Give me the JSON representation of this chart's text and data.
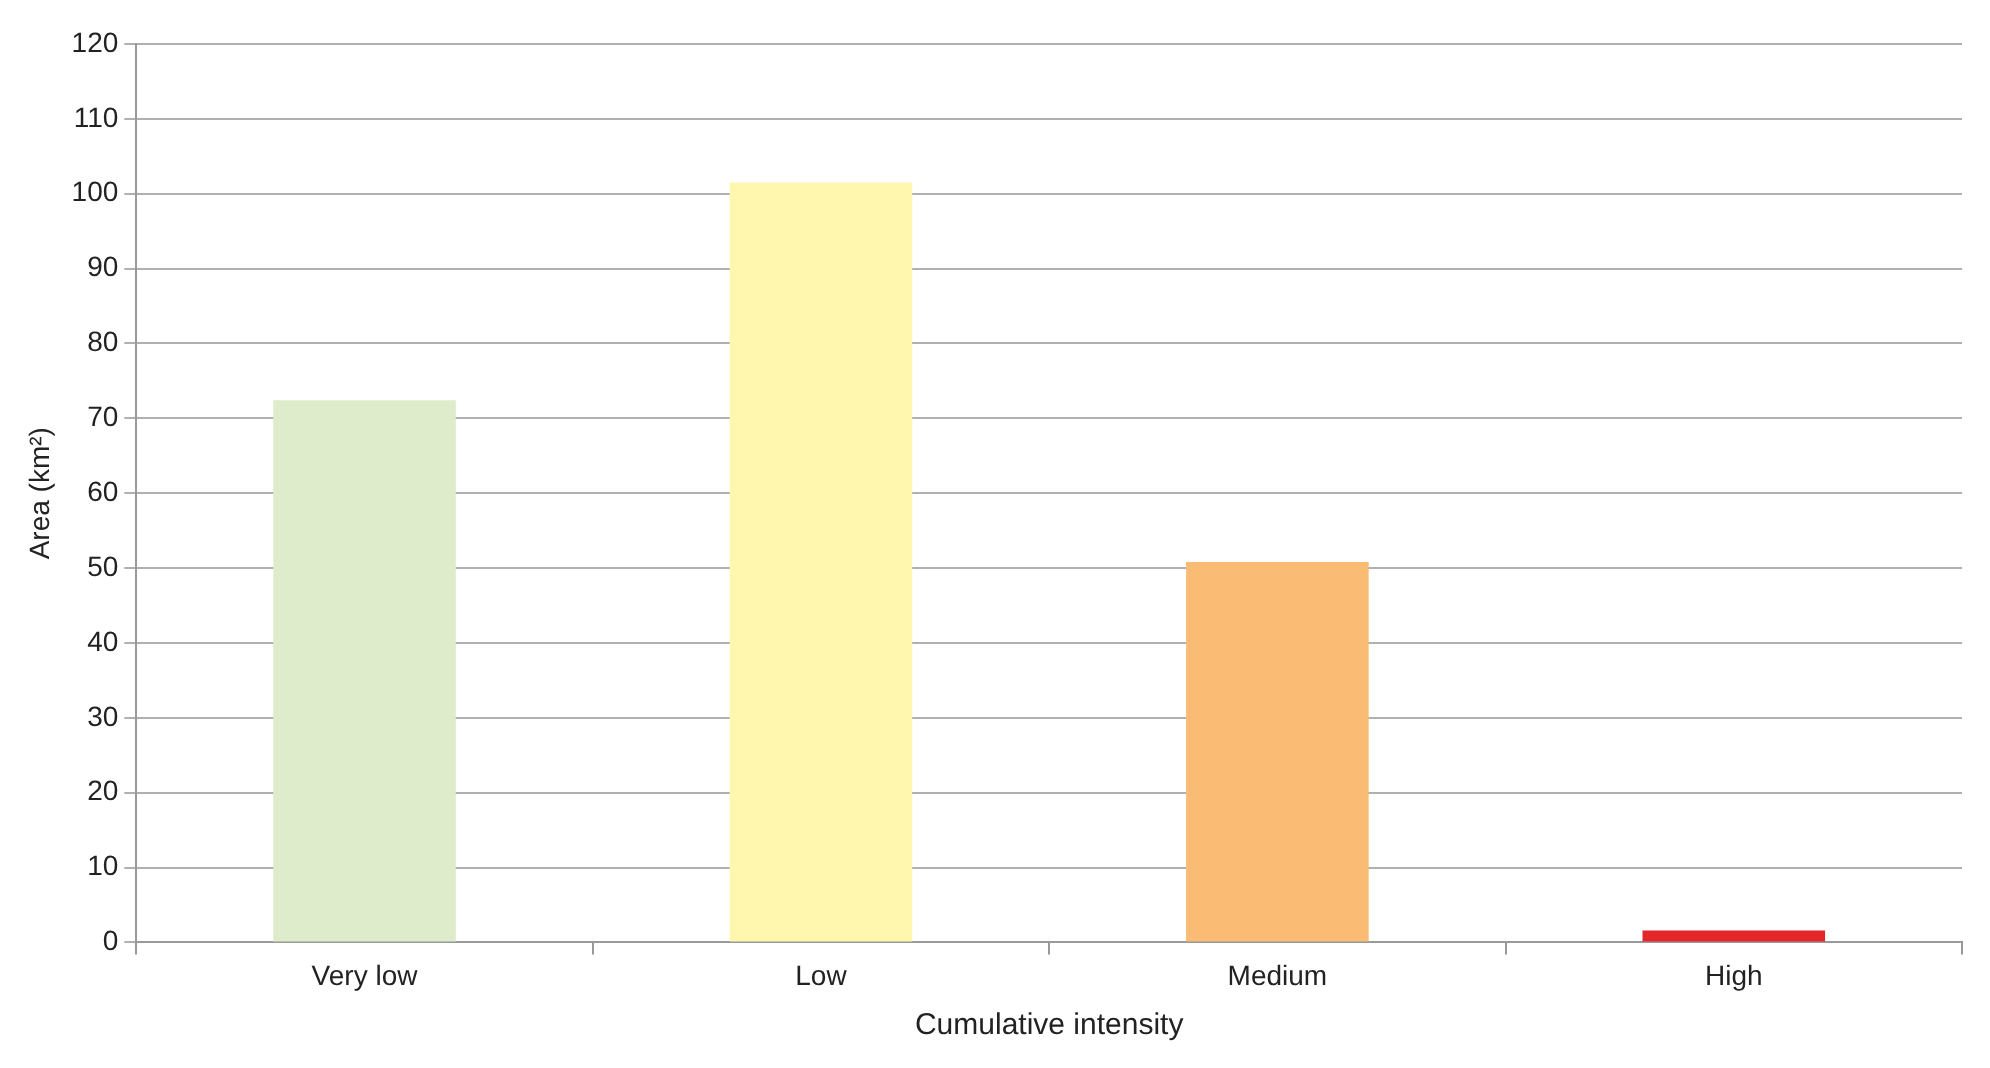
{
  "chart_data": {
    "type": "bar",
    "xlabel": "Cumulative intensity",
    "ylabel": "Area (km²)",
    "categories": [
      "Very low",
      "Low",
      "Medium",
      "High"
    ],
    "values": [
      72.4,
      101.5,
      50.8,
      1.6
    ],
    "colors": [
      "#dfeccb",
      "#fff7ae",
      "#fabb74",
      "#e3262a"
    ],
    "ylim": [
      0,
      120
    ],
    "yticks": [
      0,
      10,
      20,
      30,
      40,
      50,
      60,
      70,
      80,
      90,
      100,
      110,
      120
    ],
    "grid": "y"
  }
}
